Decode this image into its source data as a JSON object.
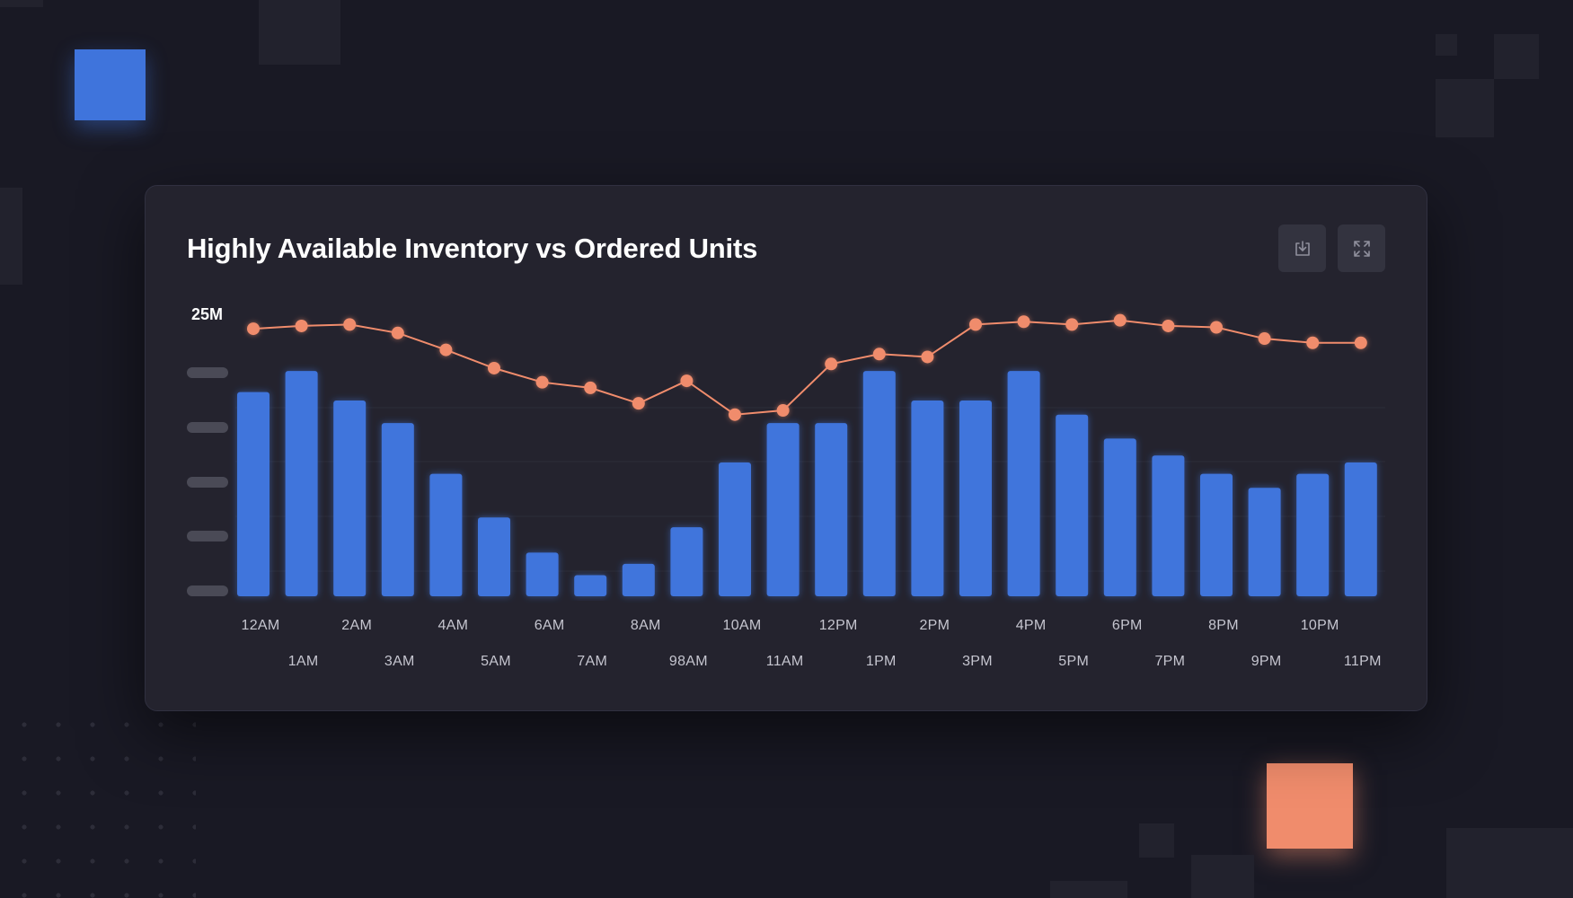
{
  "chart_data": {
    "type": "bar",
    "title": "Highly Available Inventory vs Ordered Units",
    "y_top_label": "25M",
    "grid": true,
    "categories": [
      "12AM",
      "1AM",
      "2AM",
      "3AM",
      "4AM",
      "5AM",
      "6AM",
      "7AM",
      "8AM",
      "98AM",
      "10AM",
      "11AM",
      "12PM",
      "1PM",
      "2PM",
      "3PM",
      "4PM",
      "5PM",
      "6PM",
      "7PM",
      "8PM",
      "9PM",
      "10PM",
      "11PM"
    ],
    "series": [
      {
        "type": "bar",
        "values": [
          14.5,
          16.0,
          13.9,
          12.3,
          8.7,
          5.6,
          3.1,
          1.5,
          2.3,
          4.9,
          9.5,
          12.3,
          12.3,
          16.0,
          13.9,
          13.9,
          16.0,
          12.9,
          11.2,
          10.0,
          8.7,
          7.7,
          8.7,
          9.5
        ]
      },
      {
        "type": "line",
        "values": [
          19.0,
          19.2,
          19.3,
          18.7,
          17.5,
          16.2,
          15.2,
          14.8,
          13.7,
          15.3,
          12.9,
          13.2,
          16.5,
          17.2,
          17.0,
          19.3,
          19.5,
          19.3,
          19.6,
          19.2,
          19.1,
          18.3,
          18.0,
          18.0
        ]
      }
    ],
    "ylim": [
      0,
      25
    ],
    "colors": {
      "bars": "#3f74dc",
      "line": "#f08c6c"
    }
  },
  "toolbar": {
    "download_icon": "download-icon",
    "expand_icon": "expand-icon"
  }
}
